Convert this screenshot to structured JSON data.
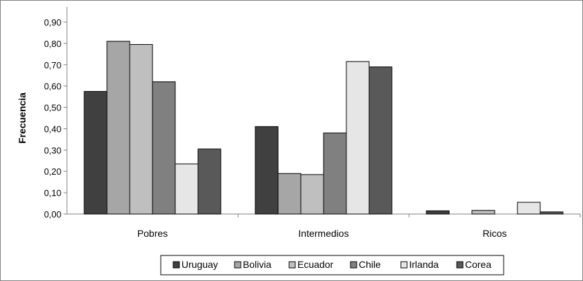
{
  "chart_data": {
    "type": "bar",
    "title": "",
    "xlabel": "",
    "ylabel": "Frecuencia",
    "ylim": [
      0,
      0.9
    ],
    "yticks": [
      "0,00",
      "0,10",
      "0,20",
      "0,30",
      "0,40",
      "0,50",
      "0,60",
      "0,70",
      "0,80",
      "0,90"
    ],
    "grid": false,
    "legend_position": "bottom",
    "categories": [
      "Pobres",
      "Intermedios",
      "Ricos"
    ],
    "series": [
      {
        "name": "Uruguay",
        "color": "#404040",
        "values": [
          0.575,
          0.41,
          0.015
        ]
      },
      {
        "name": "Bolivia",
        "color": "#a6a6a6",
        "values": [
          0.81,
          0.19,
          0.0
        ]
      },
      {
        "name": "Ecuador",
        "color": "#bfbfbf",
        "values": [
          0.795,
          0.185,
          0.017
        ]
      },
      {
        "name": "Chile",
        "color": "#808080",
        "values": [
          0.62,
          0.38,
          0.0
        ]
      },
      {
        "name": "Irlanda",
        "color": "#e6e6e6",
        "values": [
          0.235,
          0.715,
          0.055
        ]
      },
      {
        "name": "Corea",
        "color": "#595959",
        "values": [
          0.305,
          0.69,
          0.01
        ]
      }
    ]
  }
}
